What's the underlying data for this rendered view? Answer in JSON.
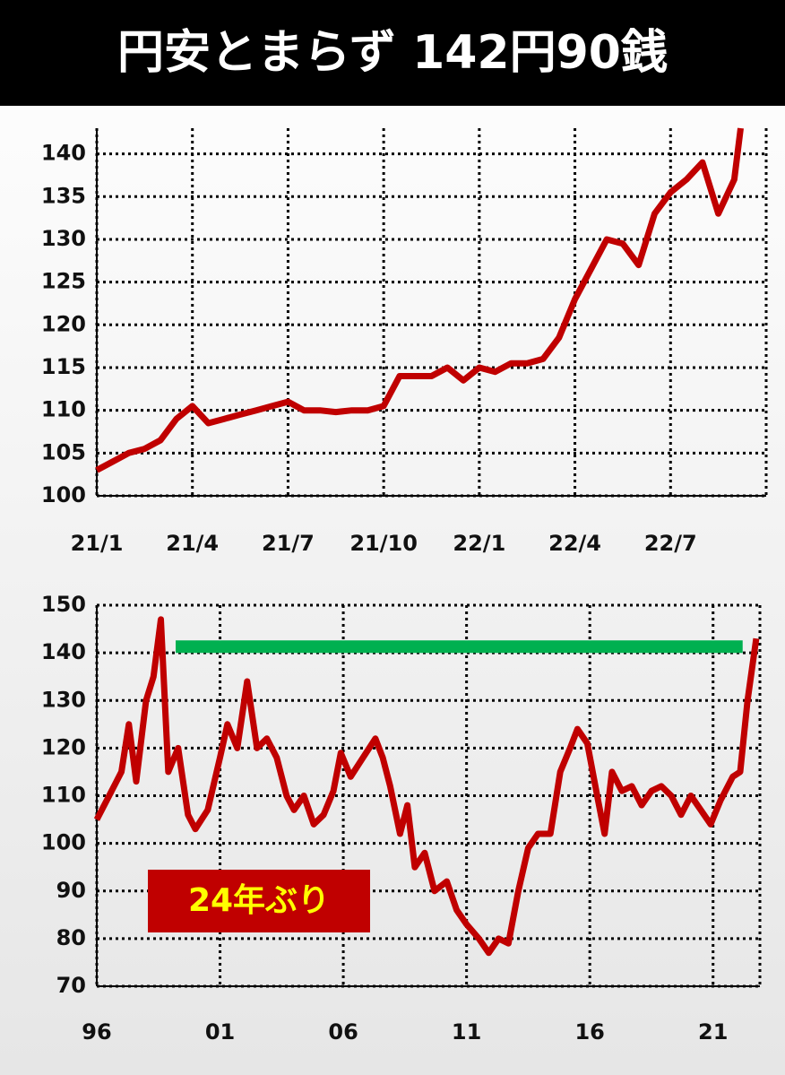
{
  "title": "円安とまらず 142円90銭",
  "chart_data": [
    {
      "type": "line",
      "color": "#c00000",
      "x": [
        0,
        0.5,
        1,
        1.5,
        2,
        2.5,
        3,
        3.5,
        4,
        4.5,
        5,
        5.5,
        6,
        6.5,
        7,
        7.5,
        8,
        8.5,
        9,
        9.5,
        10,
        10.5,
        11,
        11.5,
        12,
        12.5,
        13,
        13.5,
        14,
        14.5,
        15,
        15.5,
        16,
        16.5,
        17,
        17.5,
        18,
        18.5,
        19,
        19.5,
        20,
        20.2
      ],
      "values": [
        103,
        104,
        105,
        105.5,
        106.5,
        109,
        110.5,
        108.5,
        109,
        109.5,
        110,
        110.5,
        111,
        110,
        110,
        109.8,
        110,
        110,
        110.5,
        114,
        114,
        114,
        115,
        113.5,
        115,
        114.5,
        115.5,
        115.5,
        116,
        118.5,
        123,
        126.5,
        130,
        129.5,
        127,
        133,
        135.5,
        137,
        139,
        133,
        137,
        143
      ],
      "xlim": [
        0,
        21
      ],
      "xticks": [
        {
          "value": 0,
          "label": "21/1"
        },
        {
          "value": 3,
          "label": "21/4"
        },
        {
          "value": 6,
          "label": "21/7"
        },
        {
          "value": 9,
          "label": "21/10"
        },
        {
          "value": 12,
          "label": "22/1"
        },
        {
          "value": 15,
          "label": "22/4"
        },
        {
          "value": 18,
          "label": "22/7"
        }
      ],
      "ylim": [
        100,
        143
      ],
      "yticks": [
        100,
        105,
        110,
        115,
        120,
        125,
        130,
        135,
        140
      ],
      "grid": true
    },
    {
      "type": "line",
      "color": "#c00000",
      "x": [
        1996,
        1996.5,
        1997,
        1997.3,
        1997.6,
        1998,
        1998.3,
        1998.6,
        1998.9,
        1999.3,
        1999.7,
        2000,
        2000.5,
        2001,
        2001.3,
        2001.7,
        2002.1,
        2002.5,
        2002.9,
        2003.3,
        2003.7,
        2004,
        2004.4,
        2004.8,
        2005.2,
        2005.6,
        2005.9,
        2006.3,
        2006.8,
        2007.3,
        2007.6,
        2007.9,
        2008.3,
        2008.6,
        2008.9,
        2009.3,
        2009.7,
        2010.2,
        2010.6,
        2011,
        2011.5,
        2011.9,
        2012.3,
        2012.7,
        2013.1,
        2013.5,
        2013.9,
        2014.4,
        2014.8,
        2015.2,
        2015.5,
        2015.9,
        2016.3,
        2016.6,
        2016.9,
        2017.3,
        2017.7,
        2018.1,
        2018.5,
        2018.9,
        2019.3,
        2019.7,
        2020.1,
        2020.5,
        2020.9,
        2021.3,
        2021.8,
        2022.1,
        2022.4,
        2022.75
      ],
      "values": [
        105,
        110,
        115,
        125,
        113,
        130,
        135,
        147,
        115,
        120,
        106,
        103,
        107,
        118,
        125,
        120,
        134,
        120,
        122,
        118,
        110,
        107,
        110,
        104,
        106,
        111,
        119,
        114,
        118,
        122,
        118,
        112,
        102,
        108,
        95,
        98,
        90,
        92,
        86,
        83,
        80,
        77,
        80,
        79,
        90,
        99,
        102,
        102,
        115,
        120,
        124,
        121,
        110,
        102,
        115,
        111,
        112,
        108,
        111,
        112,
        110,
        106,
        110,
        107,
        104,
        109,
        114,
        115,
        130,
        143
      ],
      "xlim": [
        1996,
        2022.9
      ],
      "xticks": [
        {
          "value": 1996,
          "label": "96"
        },
        {
          "value": 2001,
          "label": "01"
        },
        {
          "value": 2006,
          "label": "06"
        },
        {
          "value": 2011,
          "label": "11"
        },
        {
          "value": 2016,
          "label": "16"
        },
        {
          "value": 2021,
          "label": "21"
        }
      ],
      "ylim": [
        70,
        150
      ],
      "yticks": [
        70,
        80,
        90,
        100,
        110,
        120,
        130,
        140,
        150
      ],
      "grid": true,
      "reference_line": {
        "value": 141.3,
        "x": [
          1999.2,
          2022.2
        ],
        "color": "#00b050"
      },
      "annotation": "24年ぶり"
    }
  ]
}
